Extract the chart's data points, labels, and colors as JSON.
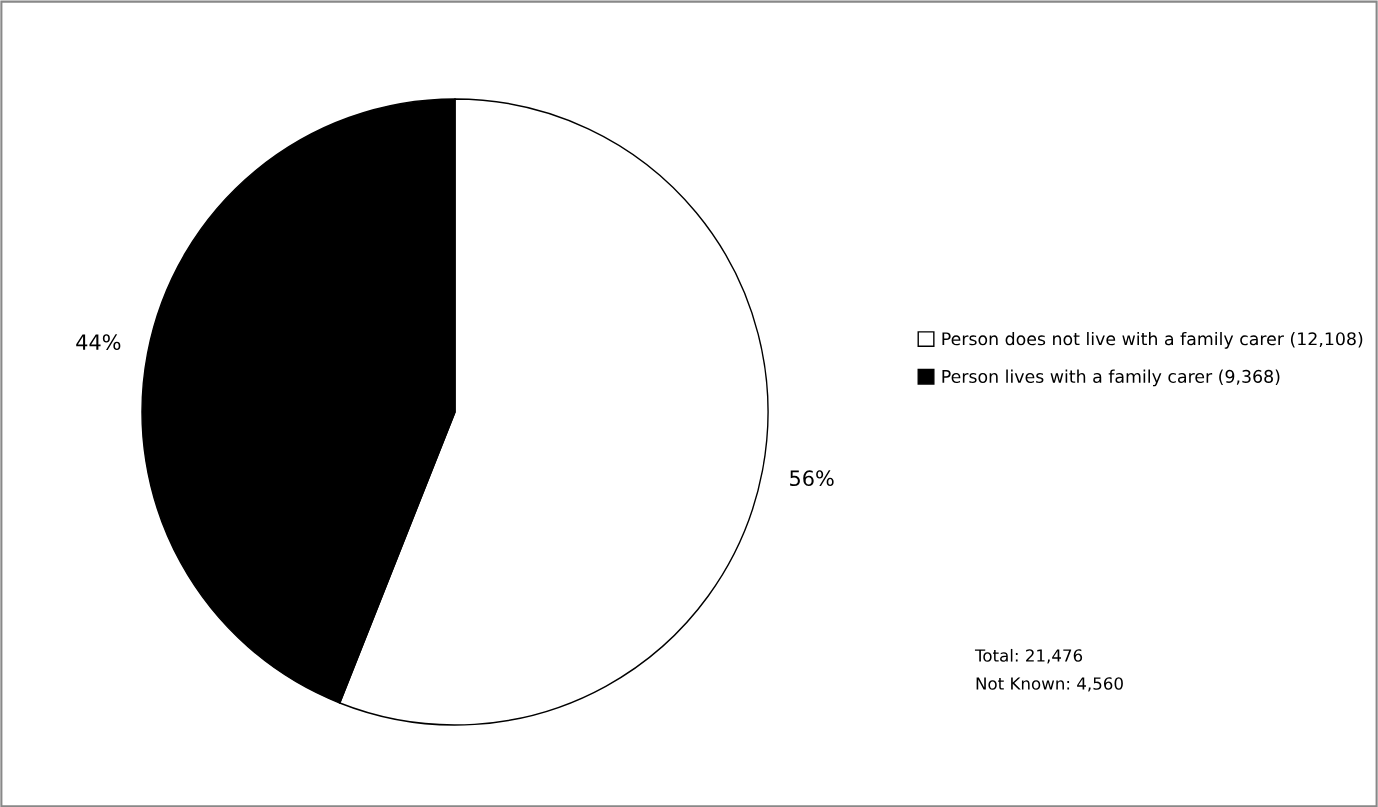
{
  "chart_data": {
    "type": "pie",
    "categories": [
      "Person does not live with a family carer (12,108)",
      "Person lives with a family carer (9,368)"
    ],
    "values": [
      56,
      44
    ],
    "colors": [
      "#ffffff",
      "#000000"
    ],
    "value_labels": [
      "56%",
      "44%"
    ],
    "legend": "right",
    "annotations": [
      "Total: 21,476",
      "Not Known: 4,560"
    ]
  }
}
